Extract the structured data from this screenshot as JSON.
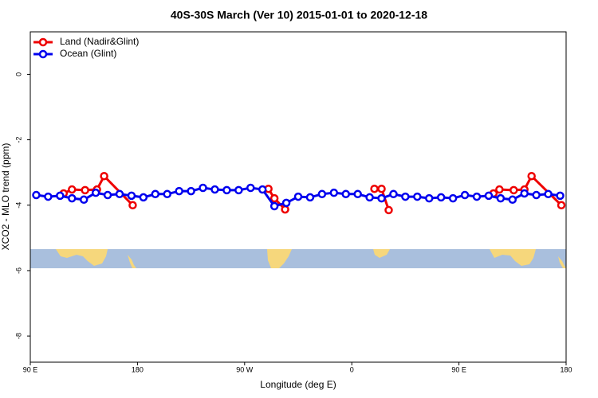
{
  "chart_data": {
    "type": "line",
    "title": "40S-30S March (Ver 10)   2015-01-01 to 2020-12-18",
    "xlabel": "Longitude (deg E)",
    "ylabel": "XCO2 - MLO trend (ppm)",
    "xlim": [
      90,
      540
    ],
    "xticks": [
      {
        "value": 90,
        "label": "90 E"
      },
      {
        "value": 180,
        "label": "180"
      },
      {
        "value": 270,
        "label": "90 W"
      },
      {
        "value": 360,
        "label": "0"
      },
      {
        "value": 450,
        "label": "90 E"
      },
      {
        "value": 540,
        "label": "180"
      }
    ],
    "ylim": [
      -8.8,
      1.3
    ],
    "yticks": [
      0,
      -2,
      -4,
      -6,
      -8
    ],
    "legend": "upper left",
    "series": [
      {
        "name": "Land (Nadir&Glint)",
        "color": "#ee0000",
        "x": [
          118,
          125,
          136,
          146,
          152,
          176,
          null,
          290,
          295,
          304,
          null,
          379,
          385,
          391,
          null,
          479,
          484,
          496,
          505,
          511,
          536
        ],
        "values": [
          -3.64,
          -3.52,
          -3.54,
          -3.52,
          -3.11,
          -4.0,
          null,
          -3.5,
          -3.79,
          -4.13,
          null,
          -3.5,
          -3.5,
          -4.15,
          null,
          -3.64,
          -3.52,
          -3.54,
          -3.52,
          -3.11,
          -4.0
        ]
      },
      {
        "name": "Ocean (Glint)",
        "color": "#0000ee",
        "x": [
          95,
          105,
          115,
          125,
          135,
          145,
          155,
          165,
          175,
          185,
          195,
          205,
          215,
          225,
          235,
          245,
          255,
          265,
          275,
          285,
          295,
          305,
          315,
          325,
          335,
          345,
          355,
          365,
          375,
          385,
          395,
          405,
          415,
          425,
          435,
          445,
          455,
          465,
          475,
          485,
          495,
          505,
          515,
          525,
          535
        ],
        "values": [
          -3.69,
          -3.74,
          -3.71,
          -3.79,
          -3.83,
          -3.62,
          -3.69,
          -3.66,
          -3.71,
          -3.76,
          -3.66,
          -3.66,
          -3.57,
          -3.57,
          -3.47,
          -3.52,
          -3.54,
          -3.54,
          -3.47,
          -3.52,
          -4.03,
          -3.93,
          -3.74,
          -3.76,
          -3.66,
          -3.62,
          -3.66,
          -3.66,
          -3.76,
          -3.79,
          -3.66,
          -3.74,
          -3.74,
          -3.79,
          -3.76,
          -3.79,
          -3.69,
          -3.74,
          -3.71,
          -3.79,
          -3.83,
          -3.64,
          -3.69,
          -3.66,
          -3.71
        ]
      }
    ]
  }
}
